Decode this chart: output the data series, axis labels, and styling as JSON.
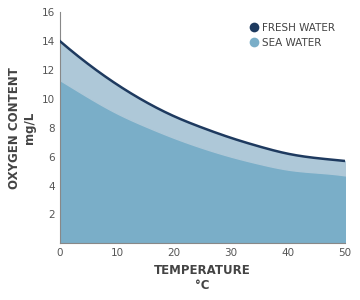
{
  "temp": [
    0,
    5,
    10,
    15,
    20,
    25,
    30,
    35,
    40,
    45,
    50
  ],
  "fresh_water": [
    14.0,
    12.4,
    11.0,
    9.8,
    8.8,
    8.0,
    7.3,
    6.7,
    6.2,
    5.9,
    5.7
  ],
  "sea_water": [
    11.3,
    10.1,
    9.0,
    8.1,
    7.3,
    6.6,
    6.0,
    5.5,
    5.1,
    4.9,
    4.7
  ],
  "fresh_water_color": "#1e3a5f",
  "sea_water_fill_color": "#7aaec8",
  "between_fill_color": "#aec8d8",
  "background_color": "#ffffff",
  "xlabel": "TEMPERATURE",
  "xlabel2": "°C",
  "ylabel1": "OXYGEN CONTENT",
  "ylabel2": "mg/L",
  "legend_fresh": "FRESH WATER",
  "legend_sea": "SEA WATER",
  "xlim": [
    0,
    50
  ],
  "ylim": [
    0,
    16
  ],
  "xticks": [
    0,
    10,
    20,
    30,
    40,
    50
  ],
  "yticks": [
    2,
    4,
    6,
    8,
    10,
    12,
    14,
    16
  ],
  "line_width": 1.8,
  "tick_label_size": 7.5,
  "axis_label_size": 8.5,
  "legend_fontsize": 7.5
}
